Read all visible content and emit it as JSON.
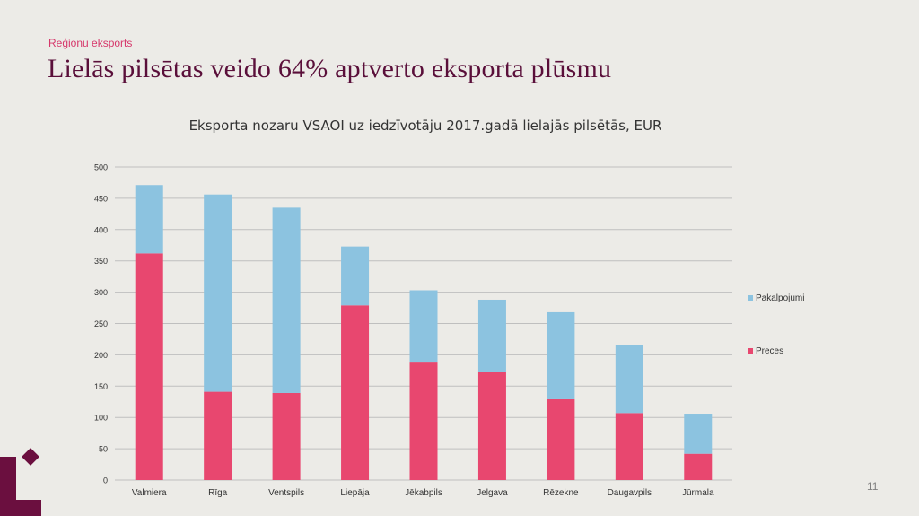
{
  "slide": {
    "section": "Reģionu eksports",
    "title": "Lielās pilsētas veido 64% aptverto eksporta plūsmu",
    "page_number": "11"
  },
  "colors": {
    "preces": "#e8476f",
    "pakalpojumi": "#8cc3e0",
    "grid": "#bfbfbf",
    "axis_text": "#333333",
    "brand": "#6b0f3f"
  },
  "chart_data": {
    "type": "bar",
    "stacked": true,
    "title": "Eksporta nozaru VSAOI uz iedzīvotāju 2017.gadā  lielajās pilsētās, EUR",
    "categories": [
      "Valmiera",
      "Rīga",
      "Ventspils",
      "Liepāja",
      "Jēkabpils",
      "Jelgava",
      "Rēzekne",
      "Daugavpils",
      "Jūrmala"
    ],
    "series": [
      {
        "name": "Preces",
        "color": "#e8476f",
        "values": [
          362,
          141,
          139,
          279,
          189,
          172,
          129,
          107,
          42
        ]
      },
      {
        "name": "Pakalpojumi",
        "color": "#8cc3e0",
        "values": [
          109,
          315,
          296,
          94,
          114,
          116,
          139,
          108,
          64
        ]
      }
    ],
    "ylim": [
      0,
      500
    ],
    "yticks": [
      0,
      50,
      100,
      150,
      200,
      250,
      300,
      350,
      400,
      450,
      500
    ],
    "grid": true,
    "legend_position": "right"
  }
}
